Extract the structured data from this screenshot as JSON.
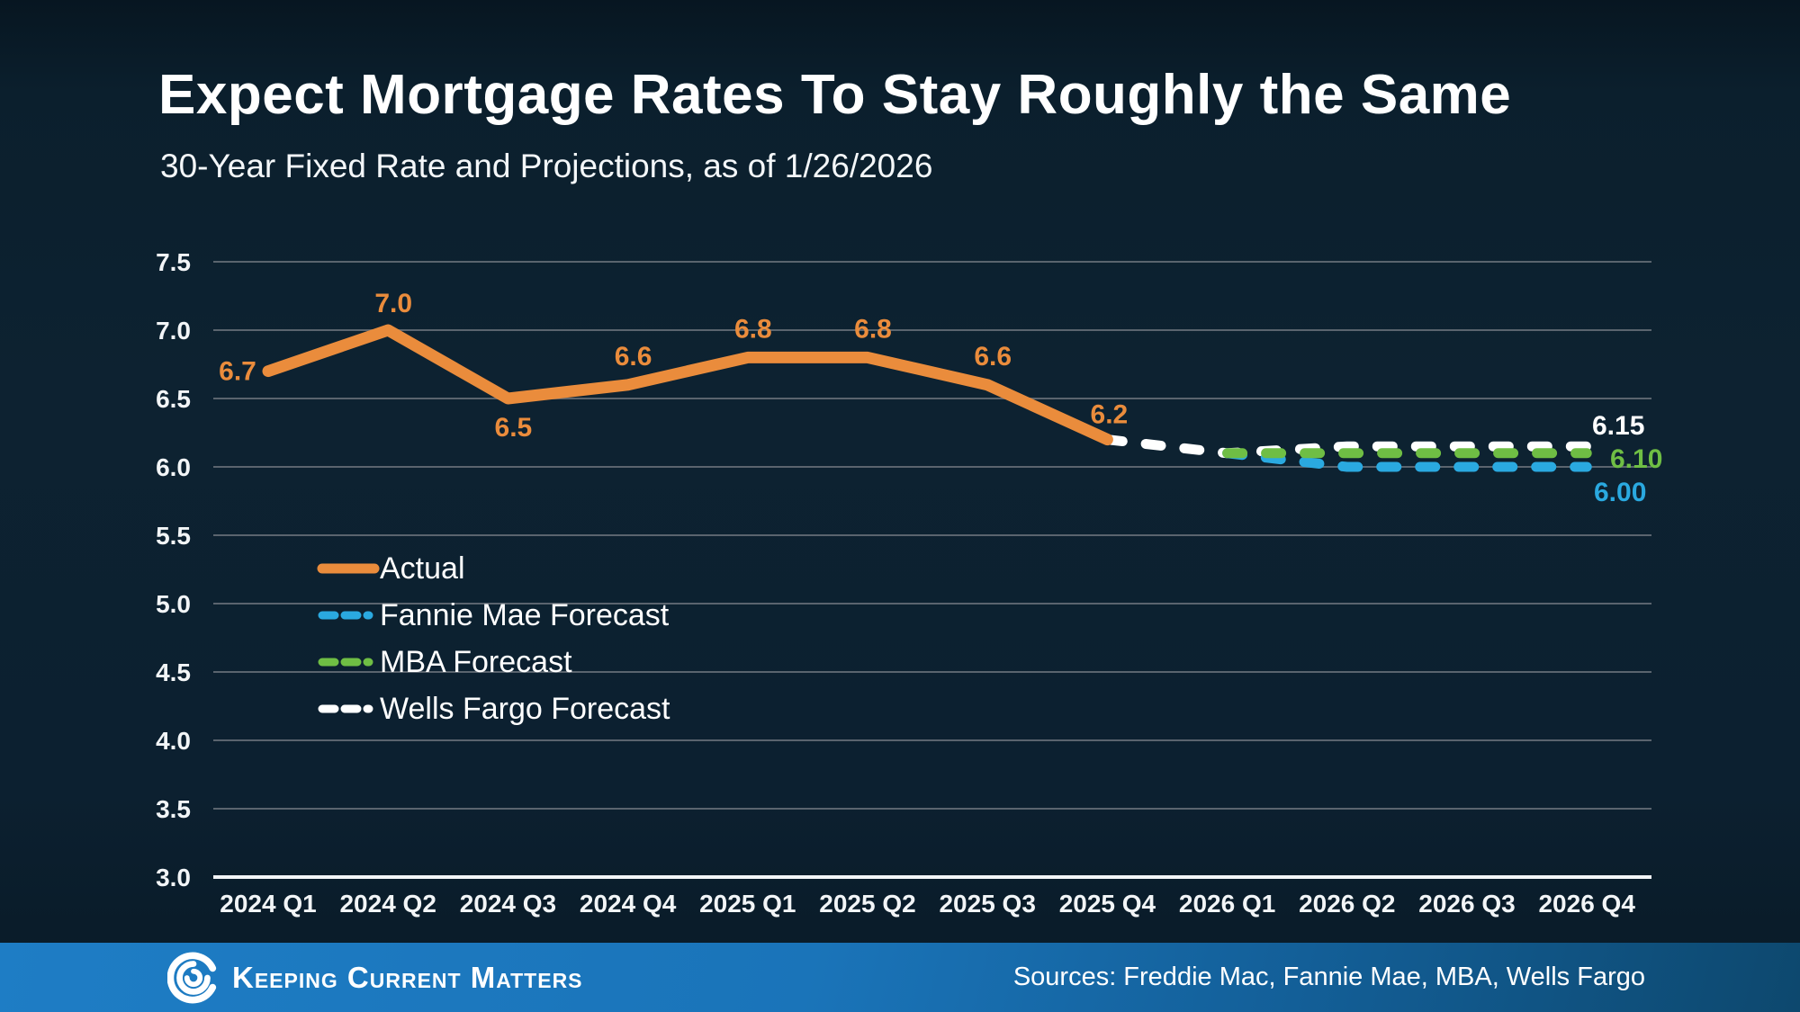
{
  "header": {
    "title": "Expect Mortgage Rates To Stay Roughly the Same",
    "subtitle": "30-Year Fixed Rate and Projections, as of 1/26/2026"
  },
  "legend": {
    "items": [
      {
        "label": "Actual",
        "color": "#EA8C3C",
        "style": "solid"
      },
      {
        "label": "Fannie Mae Forecast",
        "color": "#2AA9E0",
        "style": "dashed"
      },
      {
        "label": "MBA Forecast",
        "color": "#6FBE44",
        "style": "dashed"
      },
      {
        "label": "Wells Fargo Forecast",
        "color": "#FFFFFF",
        "style": "dashed"
      }
    ]
  },
  "footer": {
    "brand": "Keeping Current Matters",
    "sources": "Sources: Freddie Mac, Fannie Mae, MBA, Wells Fargo",
    "bar_color_left": "#1E7DC5",
    "bar_color_right": "#0D486E"
  },
  "colors": {
    "background": "#0C2030",
    "grid": "#5A646E",
    "axis": "#F2F5F7",
    "accent_orange": "#EA8C3C",
    "accent_blue": "#2AA9E0",
    "accent_green": "#6FBE44"
  },
  "chart_data": {
    "type": "line",
    "title": "Expect Mortgage Rates To Stay Roughly the Same",
    "subtitle": "30-Year Fixed Rate and Projections, as of 1/26/2026",
    "categories": [
      "2024 Q1",
      "2024 Q2",
      "2024 Q3",
      "2024 Q4",
      "2025 Q1",
      "2025 Q2",
      "2025 Q3",
      "2025 Q4",
      "2026 Q1",
      "2026 Q2",
      "2026 Q3",
      "2026 Q4"
    ],
    "ylim": [
      3.0,
      7.5
    ],
    "yticks": [
      "7.5",
      "7.0",
      "6.5",
      "6.0",
      "5.5",
      "5.0",
      "4.5",
      "4.0",
      "3.5",
      "3.0"
    ],
    "grid": true,
    "legend_position": "middle-left",
    "series": [
      {
        "name": "Actual",
        "color": "#EA8C3C",
        "style": "solid",
        "values": [
          6.7,
          7.0,
          6.5,
          6.6,
          6.8,
          6.8,
          6.6,
          6.2,
          null,
          null,
          null,
          null
        ],
        "point_labels": [
          "6.7",
          "7.0",
          "6.5",
          "6.6",
          "6.8",
          "6.8",
          "6.6",
          "6.2"
        ]
      },
      {
        "name": "Fannie Mae Forecast",
        "color": "#2AA9E0",
        "style": "dashed",
        "values": [
          null,
          null,
          null,
          null,
          null,
          null,
          null,
          null,
          6.1,
          6.0,
          6.0,
          6.0
        ],
        "end_label": "6.00"
      },
      {
        "name": "MBA Forecast",
        "color": "#6FBE44",
        "style": "dashed",
        "values": [
          null,
          null,
          null,
          null,
          null,
          null,
          null,
          null,
          6.1,
          6.1,
          6.1,
          6.1
        ],
        "end_label": "6.10"
      },
      {
        "name": "Wells Fargo Forecast",
        "color": "#FFFFFF",
        "style": "dashed",
        "values": [
          null,
          null,
          null,
          null,
          null,
          null,
          null,
          6.2,
          6.1,
          6.15,
          6.15,
          6.15
        ],
        "end_label": "6.15"
      }
    ]
  }
}
